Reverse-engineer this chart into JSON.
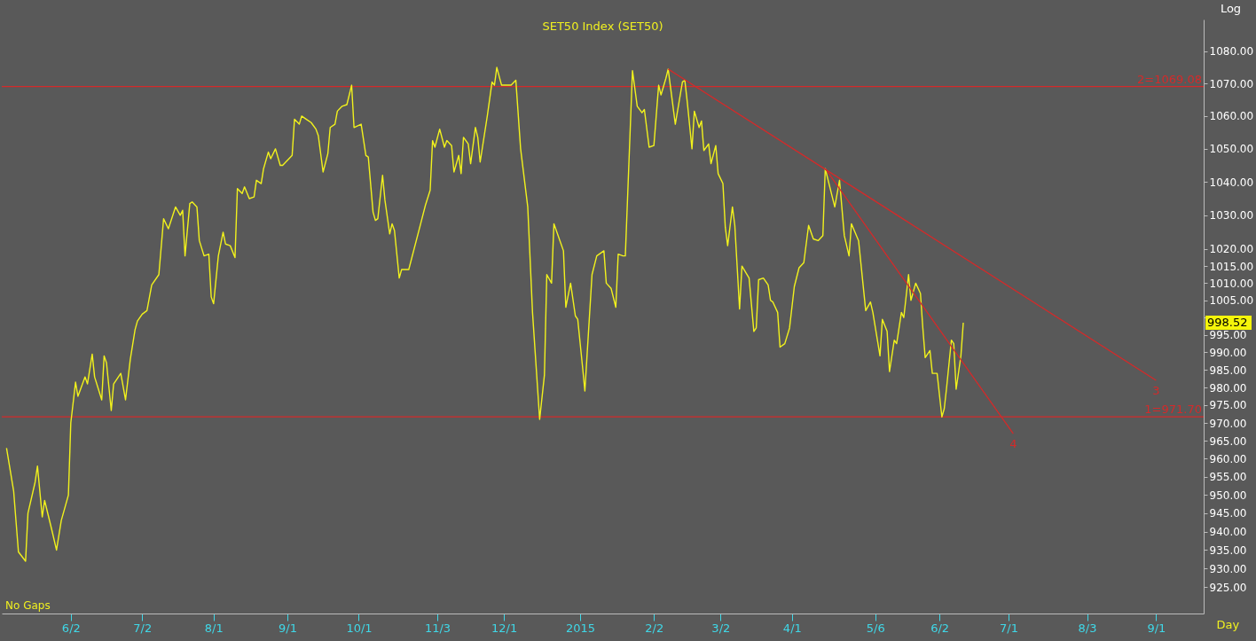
{
  "chart_data": {
    "type": "line",
    "title": "SET50 Index (SET50)",
    "xlabel": "Day",
    "ylabel": "Log",
    "log": true,
    "annotations": [
      "No Gaps",
      "998.52"
    ],
    "xlim": [
      "2014-05-04",
      "2015-09-21"
    ],
    "xticks": [
      {
        "value": "2014-06-02",
        "label": "6/2"
      },
      {
        "value": "2014-07-02",
        "label": "7/2"
      },
      {
        "value": "2014-08-01",
        "label": "8/1"
      },
      {
        "value": "2014-09-01",
        "label": "9/1"
      },
      {
        "value": "2014-10-01",
        "label": "10/1"
      },
      {
        "value": "2014-11-03",
        "label": "11/3"
      },
      {
        "value": "2014-12-01",
        "label": "12/1"
      },
      {
        "value": "2015-01-02",
        "label": "2015"
      },
      {
        "value": "2015-02-02",
        "label": "2/2"
      },
      {
        "value": "2015-03-02",
        "label": "3/2"
      },
      {
        "value": "2015-04-01",
        "label": "4/1"
      },
      {
        "value": "2015-05-06",
        "label": "5/6"
      },
      {
        "value": "2015-06-02",
        "label": "6/2"
      },
      {
        "value": "2015-07-01",
        "label": "7/1"
      },
      {
        "value": "2015-08-03",
        "label": "8/3"
      },
      {
        "value": "2015-09-01",
        "label": "9/1"
      }
    ],
    "ylim": [
      918,
      1090
    ],
    "yticks": [
      {
        "value": 925,
        "label": "925.00"
      },
      {
        "value": 930,
        "label": "930.00"
      },
      {
        "value": 935,
        "label": "935.00"
      },
      {
        "value": 940,
        "label": "940.00"
      },
      {
        "value": 945,
        "label": "945.00"
      },
      {
        "value": 950,
        "label": "950.00"
      },
      {
        "value": 955,
        "label": "955.00"
      },
      {
        "value": 960,
        "label": "960.00"
      },
      {
        "value": 965,
        "label": "965.00"
      },
      {
        "value": 970,
        "label": "970.00"
      },
      {
        "value": 975,
        "label": "975.00"
      },
      {
        "value": 980,
        "label": "980.00"
      },
      {
        "value": 985,
        "label": "985.00"
      },
      {
        "value": 990,
        "label": "990.00"
      },
      {
        "value": 995,
        "label": "995.00"
      },
      {
        "value": 1000,
        "label": null
      },
      {
        "value": 1005,
        "label": "1005.00"
      },
      {
        "value": 1010,
        "label": "1010.00"
      },
      {
        "value": 1015,
        "label": "1015.00"
      },
      {
        "value": 1020,
        "label": "1020.00"
      },
      {
        "value": 1030,
        "label": "1030.00"
      },
      {
        "value": 1040,
        "label": "1040.00"
      },
      {
        "value": 1050,
        "label": "1050.00"
      },
      {
        "value": 1060,
        "label": "1060.00"
      },
      {
        "value": 1070,
        "label": "1070.00"
      },
      {
        "value": 1080,
        "label": "1080.00"
      }
    ],
    "ref_lines": [
      {
        "axis": "y",
        "value": 1069.08,
        "label": "2=1069.08",
        "color": "#d42a2a"
      },
      {
        "axis": "y",
        "value": 971.7,
        "label": "1=971.70",
        "color": "#d42a2a"
      }
    ],
    "series": [
      {
        "color": "#f2f21c",
        "x": [
          "2014-05-06",
          "2014-05-09",
          "2014-05-11",
          "2014-05-14",
          "2014-05-15",
          "2014-05-18",
          "2014-05-19",
          "2014-05-21",
          "2014-05-22",
          "2014-05-25",
          "2014-05-27",
          "2014-05-29",
          "2014-06-01",
          "2014-06-02",
          "2014-06-04",
          "2014-06-05",
          "2014-06-08",
          "2014-06-09",
          "2014-06-11",
          "2014-06-12",
          "2014-06-15",
          "2014-06-16",
          "2014-06-17",
          "2014-06-19",
          "2014-06-20",
          "2014-06-23",
          "2014-06-25",
          "2014-06-27",
          "2014-06-29",
          "2014-06-30",
          "2014-07-02",
          "2014-07-04",
          "2014-07-06",
          "2014-07-09",
          "2014-07-11",
          "2014-07-13",
          "2014-07-16",
          "2014-07-18",
          "2014-07-19",
          "2014-07-20",
          "2014-07-22",
          "2014-07-23",
          "2014-07-25",
          "2014-07-26",
          "2014-07-28",
          "2014-07-30",
          "2014-07-31",
          "2014-08-01",
          "2014-08-03",
          "2014-08-05",
          "2014-08-06",
          "2014-08-08",
          "2014-08-10",
          "2014-08-11",
          "2014-08-13",
          "2014-08-14",
          "2014-08-16",
          "2014-08-18",
          "2014-08-19",
          "2014-08-21",
          "2014-08-22",
          "2014-08-24",
          "2014-08-25",
          "2014-08-27",
          "2014-08-29",
          "2014-08-30",
          "2014-09-03",
          "2014-09-04",
          "2014-09-06",
          "2014-09-07",
          "2014-09-09",
          "2014-09-11",
          "2014-09-13",
          "2014-09-14",
          "2014-09-16",
          "2014-09-18",
          "2014-09-19",
          "2014-09-21",
          "2014-09-22",
          "2014-09-24",
          "2014-09-26",
          "2014-09-28",
          "2014-09-29",
          "2014-10-02",
          "2014-10-04",
          "2014-10-05",
          "2014-10-07",
          "2014-10-08",
          "2014-10-09",
          "2014-10-11",
          "2014-10-12",
          "2014-10-14",
          "2014-10-15",
          "2014-10-16",
          "2014-10-18",
          "2014-10-19",
          "2014-10-22",
          "2014-10-27",
          "2014-10-29",
          "2014-10-31",
          "2014-11-01",
          "2014-11-02",
          "2014-11-04",
          "2014-11-06",
          "2014-11-07",
          "2014-11-09",
          "2014-11-10",
          "2014-11-12",
          "2014-11-13",
          "2014-11-14",
          "2014-11-16",
          "2014-11-17",
          "2014-11-19",
          "2014-11-20",
          "2014-11-21",
          "2014-11-24",
          "2014-11-26",
          "2014-11-27",
          "2014-11-28",
          "2014-11-30",
          "2014-12-02",
          "2014-12-04",
          "2014-12-06",
          "2014-12-08",
          "2014-12-11",
          "2014-12-13",
          "2014-12-16",
          "2014-12-18",
          "2014-12-19",
          "2014-12-21",
          "2014-12-22",
          "2014-12-26",
          "2014-12-27",
          "2014-12-29",
          "2014-12-31",
          "2015-01-01",
          "2015-01-03",
          "2015-01-04",
          "2015-01-07",
          "2015-01-09",
          "2015-01-12",
          "2015-01-13",
          "2015-01-15",
          "2015-01-17",
          "2015-01-18",
          "2015-01-20",
          "2015-01-21",
          "2015-01-24",
          "2015-01-26",
          "2015-01-28",
          "2015-01-29",
          "2015-01-31",
          "2015-02-02",
          "2015-02-04",
          "2015-02-05",
          "2015-02-07",
          "2015-02-08",
          "2015-02-11",
          "2015-02-14",
          "2015-02-15",
          "2015-02-16",
          "2015-02-18",
          "2015-02-19",
          "2015-02-21",
          "2015-02-22",
          "2015-02-23",
          "2015-02-25",
          "2015-02-26",
          "2015-02-28",
          "2015-03-01",
          "2015-03-03",
          "2015-03-04",
          "2015-03-05",
          "2015-03-07",
          "2015-03-08",
          "2015-03-10",
          "2015-03-11",
          "2015-03-14",
          "2015-03-16",
          "2015-03-17",
          "2015-03-18",
          "2015-03-20",
          "2015-03-22",
          "2015-03-23",
          "2015-03-24",
          "2015-03-26",
          "2015-03-27",
          "2015-03-29",
          "2015-03-31",
          "2015-04-02",
          "2015-04-04",
          "2015-04-06",
          "2015-04-08",
          "2015-04-10",
          "2015-04-12",
          "2015-04-14",
          "2015-04-15",
          "2015-04-19",
          "2015-04-21",
          "2015-04-23",
          "2015-04-25",
          "2015-04-26",
          "2015-04-29",
          "2015-05-02",
          "2015-05-04",
          "2015-05-05",
          "2015-05-08",
          "2015-05-09",
          "2015-05-11",
          "2015-05-12",
          "2015-05-14",
          "2015-05-15",
          "2015-05-17",
          "2015-05-18",
          "2015-05-20",
          "2015-05-21",
          "2015-05-23",
          "2015-05-25",
          "2015-05-26",
          "2015-05-27",
          "2015-05-29",
          "2015-05-30",
          "2015-06-01",
          "2015-06-03",
          "2015-06-04",
          "2015-06-05",
          "2015-06-07",
          "2015-06-08",
          "2015-06-09",
          "2015-06-11",
          "2015-06-12"
        ],
        "values": [
          963,
          951,
          934.5,
          932,
          945,
          953.5,
          958,
          944,
          948.5,
          940.5,
          935,
          943,
          950,
          970,
          981.5,
          977.5,
          983,
          981,
          989.5,
          983,
          976.5,
          989,
          987,
          973.5,
          981,
          984,
          976.5,
          988,
          996.5,
          999,
          1001,
          1002,
          1009.5,
          1012.5,
          1029,
          1026,
          1032.5,
          1030,
          1031.5,
          1018,
          1033.5,
          1034,
          1032.5,
          1022.5,
          1018,
          1018.5,
          1006,
          1004,
          1018,
          1025,
          1021.5,
          1021,
          1017.5,
          1038,
          1036.5,
          1038.5,
          1035,
          1035.5,
          1040.5,
          1039.5,
          1044,
          1049,
          1047,
          1050,
          1045,
          1045,
          1048,
          1059,
          1057.5,
          1060,
          1059,
          1058,
          1056,
          1054,
          1043,
          1048.5,
          1056.5,
          1057.5,
          1061.5,
          1063,
          1063.5,
          1069.5,
          1056.5,
          1057.5,
          1048,
          1047.5,
          1031,
          1028.5,
          1029,
          1042,
          1034.5,
          1024.5,
          1027.5,
          1025.5,
          1011.5,
          1014,
          1014,
          1027.5,
          1033,
          1037.5,
          1052.5,
          1050.5,
          1056,
          1050.5,
          1052.5,
          1051,
          1043,
          1048,
          1042.5,
          1053.5,
          1051.5,
          1045.5,
          1056.5,
          1053.5,
          1046,
          1060,
          1070.5,
          1069.5,
          1075,
          1069.5,
          1069.5,
          1069.5,
          1071,
          1050,
          1032.5,
          1001.5,
          971,
          983.5,
          1012.5,
          1010,
          1027.5,
          1019.5,
          1003,
          1010,
          1000.5,
          999.5,
          986,
          979,
          1012.5,
          1018,
          1019.5,
          1010,
          1008.5,
          1003,
          1018.5,
          1018,
          1018,
          1074,
          1063,
          1061,
          1062,
          1050.5,
          1051,
          1069.5,
          1066.5,
          1071.5,
          1074.5,
          1057.5,
          1070.5,
          1071,
          1064.5,
          1050,
          1061.5,
          1056.5,
          1058.5,
          1049.5,
          1051.5,
          1045.5,
          1051,
          1042.5,
          1039.5,
          1026.5,
          1021,
          1032.5,
          1027,
          1002.5,
          1015,
          1011.5,
          996,
          997,
          1011,
          1011.5,
          1009.5,
          1005,
          1004.5,
          1001.5,
          991.5,
          992.5,
          997,
          1009,
          1014.5,
          1016,
          1027,
          1023,
          1022.5,
          1024,
          1044,
          1032.5,
          1040.5,
          1024,
          1018,
          1027.5,
          1022.5,
          1002,
          1004.5,
          1001.5,
          989,
          999.5,
          996,
          984.5,
          993.5,
          992.5,
          1001.5,
          1000,
          1012.5,
          1005,
          1010,
          1007,
          997,
          988.5,
          990.5,
          984,
          984,
          971.7,
          974,
          980,
          993.5,
          992.5,
          979.5,
          989,
          998.52
        ]
      },
      {
        "name": "3",
        "type": "line",
        "color": "#d42a2a",
        "x": [
          "2015-02-08",
          "2015-09-01"
        ],
        "values": [
          1074.5,
          982
        ]
      },
      {
        "name": "4",
        "type": "line",
        "color": "#d42a2a",
        "x": [
          "2015-04-15",
          "2015-07-03"
        ],
        "values": [
          1044,
          967
        ]
      }
    ]
  }
}
